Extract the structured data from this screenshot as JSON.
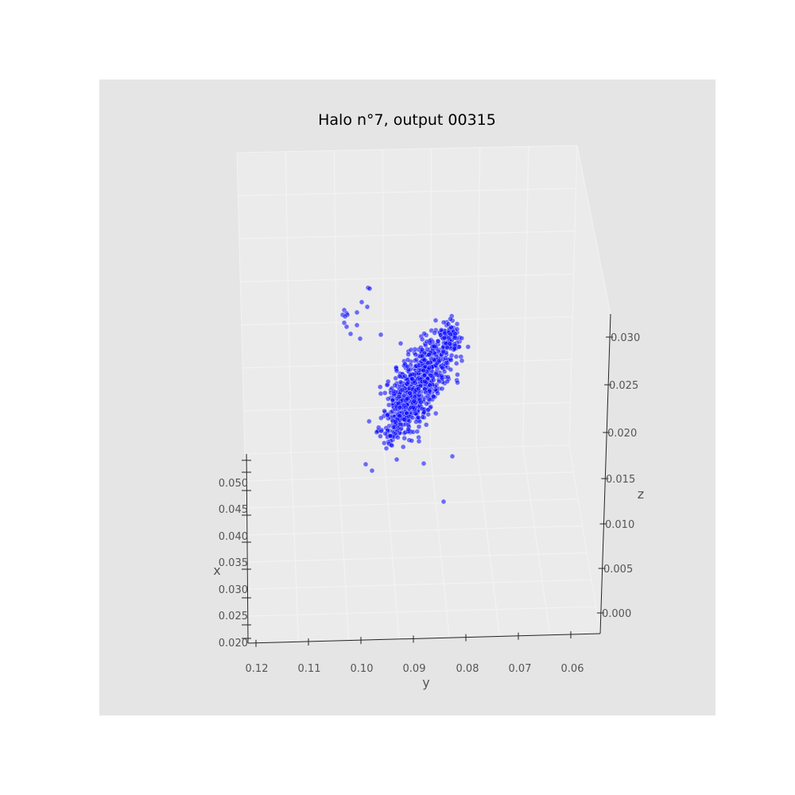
{
  "colors": {
    "figure_background": "#ffffff",
    "axes_background": "#e5e5e5",
    "pane_color": "#ebebeb",
    "grid_color": "#f2f2f2",
    "axis_line": "#222222",
    "point_color": "#0000ff"
  },
  "chart_data": {
    "type": "scatter",
    "projection": "3d",
    "title": "Halo n°7, output 00315",
    "xlabel": "x",
    "ylabel": "y",
    "zlabel": "z",
    "xlim": [
      0.019,
      0.053
    ],
    "ylim": [
      0.055,
      0.122
    ],
    "zlim": [
      -0.002,
      0.032
    ],
    "xticks": [
      "0.020",
      "0.025",
      "0.030",
      "0.035",
      "0.040",
      "0.045",
      "0.050"
    ],
    "yticks": [
      "0.12",
      "0.11",
      "0.10",
      "0.09",
      "0.08",
      "0.07",
      "0.06"
    ],
    "zticks": [
      "0.000",
      "0.005",
      "0.010",
      "0.015",
      "0.020",
      "0.025",
      "0.030"
    ],
    "grid": true,
    "point_alpha": 0.55,
    "points_approx": [
      [
        0.036,
        0.101,
        0.024
      ],
      [
        0.038,
        0.1,
        0.023
      ],
      [
        0.037,
        0.098,
        0.022
      ],
      [
        0.039,
        0.097,
        0.021
      ],
      [
        0.035,
        0.099,
        0.025
      ],
      [
        0.04,
        0.096,
        0.02
      ],
      [
        0.037,
        0.095,
        0.022
      ],
      [
        0.038,
        0.094,
        0.023
      ],
      [
        0.036,
        0.093,
        0.024
      ],
      [
        0.039,
        0.092,
        0.021
      ],
      [
        0.041,
        0.091,
        0.019
      ],
      [
        0.034,
        0.097,
        0.026
      ],
      [
        0.042,
        0.09,
        0.018
      ],
      [
        0.038,
        0.089,
        0.022
      ],
      [
        0.035,
        0.087,
        0.025
      ],
      [
        0.037,
        0.086,
        0.024
      ]
    ]
  }
}
